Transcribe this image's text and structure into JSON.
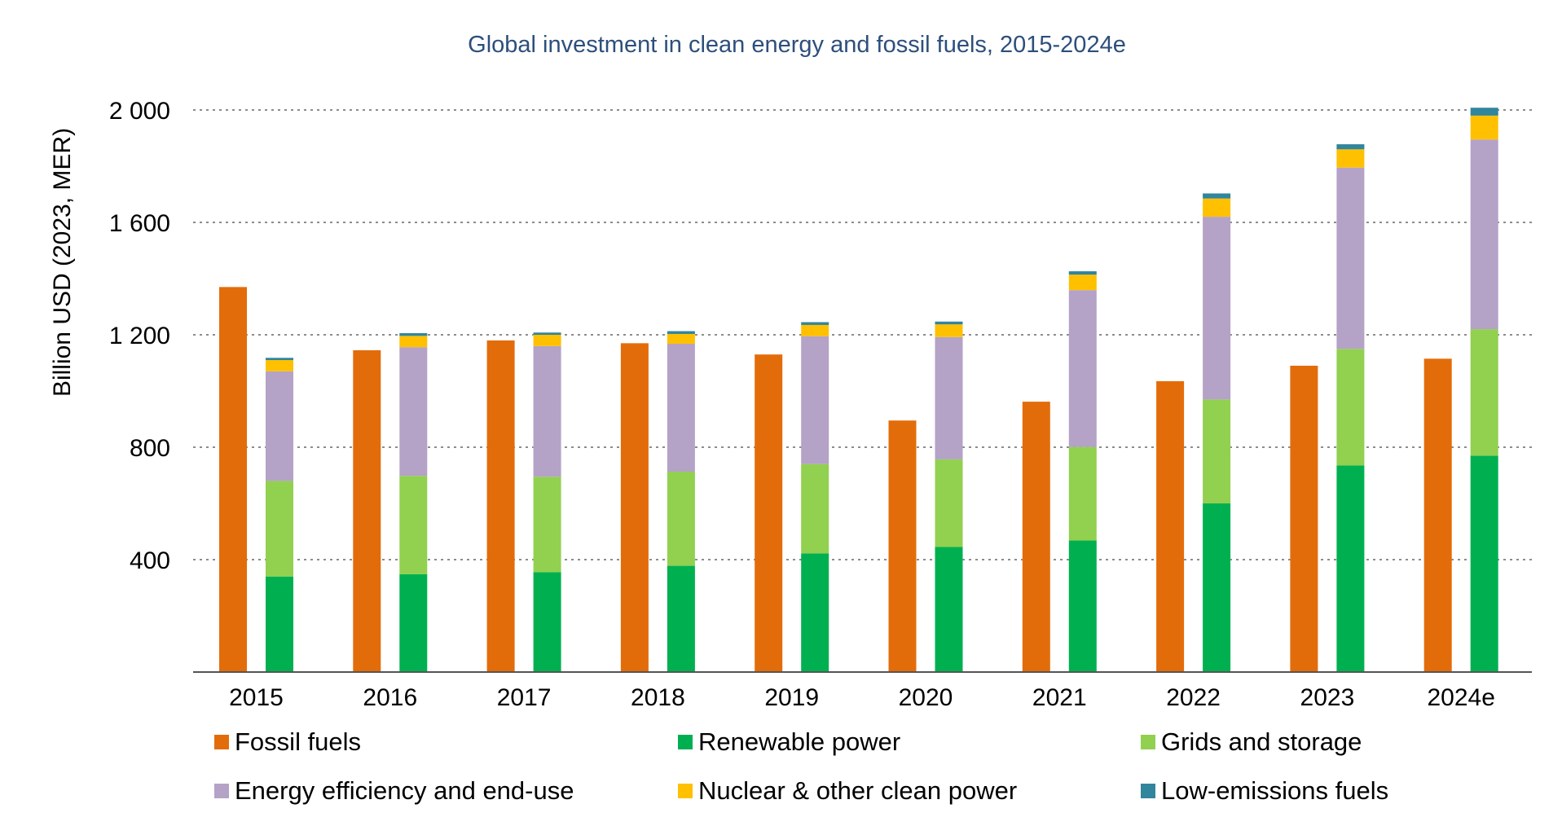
{
  "chart_data": {
    "type": "bar",
    "title": "Global investment in clean energy and fossil fuels, 2015-2024e",
    "xlabel": "",
    "ylabel": "Billion USD (2023, MER)",
    "ylim": [
      0,
      2000
    ],
    "yticks": [
      {
        "value": 400,
        "label": "400"
      },
      {
        "value": 800,
        "label": "800"
      },
      {
        "value": 1200,
        "label": "1 200"
      },
      {
        "value": 1600,
        "label": "1 600"
      },
      {
        "value": 2000,
        "label": "2 000"
      }
    ],
    "grid": true,
    "legend_position": "bottom",
    "categories": [
      "2015",
      "2016",
      "2017",
      "2018",
      "2019",
      "2020",
      "2021",
      "2022",
      "2023",
      "2024e"
    ],
    "fossil": {
      "name": "Fossil fuels",
      "color": "#e36c0a",
      "values": [
        1370,
        1145,
        1180,
        1170,
        1130,
        895,
        962,
        1035,
        1090,
        1115
      ]
    },
    "clean_stack": [
      {
        "name": "Renewable power",
        "color": "#00b050",
        "values": [
          340,
          348,
          355,
          378,
          422,
          445,
          468,
          600,
          735,
          770
        ]
      },
      {
        "name": "Grids and storage",
        "color": "#92d050",
        "values": [
          340,
          350,
          340,
          335,
          318,
          312,
          333,
          370,
          415,
          450
        ]
      },
      {
        "name": "Energy efficiency and end-use",
        "color": "#b4a2c7",
        "values": [
          390,
          458,
          465,
          455,
          455,
          435,
          558,
          650,
          645,
          675
        ]
      },
      {
        "name": "Nuclear & other clean power",
        "color": "#ffc000",
        "values": [
          40,
          40,
          40,
          35,
          40,
          45,
          55,
          65,
          65,
          85
        ]
      },
      {
        "name": "Low-emissions fuels",
        "color": "#31859c",
        "values": [
          8,
          10,
          8,
          10,
          10,
          10,
          12,
          18,
          18,
          28
        ]
      }
    ]
  }
}
